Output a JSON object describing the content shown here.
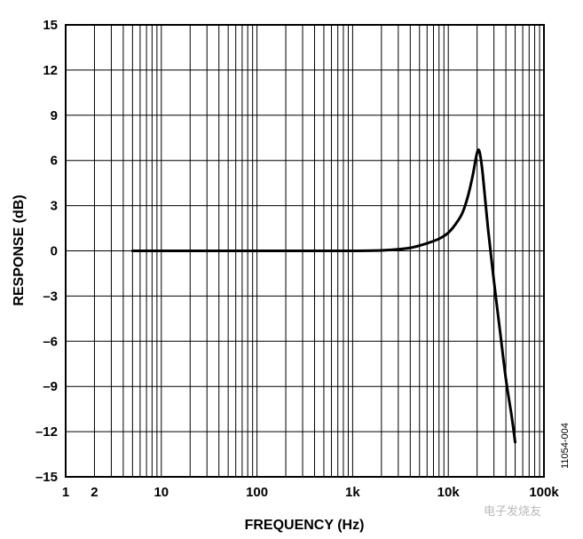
{
  "chart_data": {
    "type": "line",
    "title": "",
    "xlabel": "FREQUENCY (Hz)",
    "ylabel": "RESPONSE (dB)",
    "x_scale": "log",
    "xlim": [
      1,
      100000
    ],
    "ylim": [
      -15,
      15
    ],
    "x_tick_values": [
      1,
      10,
      100,
      1000,
      10000,
      100000
    ],
    "x_tick_labels": [
      "1",
      "10",
      "100",
      "1k",
      "10k",
      "100k"
    ],
    "y_tick_values": [
      15,
      12,
      9,
      6,
      3,
      0,
      -3,
      -6,
      -9,
      -12,
      -15
    ],
    "y_tick_labels": [
      "15",
      "12",
      "9",
      "6",
      "3",
      "0",
      "–3",
      "–6",
      "–9",
      "–12",
      "–15"
    ],
    "x_minor_labels": [
      "2"
    ],
    "grid": true,
    "series": [
      {
        "name": "Response",
        "x": [
          5,
          10,
          50,
          100,
          500,
          1000,
          2000,
          3000,
          4000,
          5000,
          6000,
          8000,
          10000,
          12000,
          14000,
          16000,
          18000,
          19500,
          20500,
          21500,
          23000,
          26000,
          30000,
          35000,
          40000,
          46000,
          50000
        ],
        "y": [
          0,
          0,
          0,
          0,
          0,
          0,
          0.03,
          0.1,
          0.2,
          0.35,
          0.5,
          0.8,
          1.2,
          1.8,
          2.5,
          3.6,
          5.0,
          6.2,
          6.7,
          6.4,
          5.0,
          1.5,
          -2.0,
          -5.5,
          -8.5,
          -11.0,
          -12.7
        ]
      }
    ]
  },
  "figure_id": "11054-004",
  "watermark": "电子发烧友"
}
